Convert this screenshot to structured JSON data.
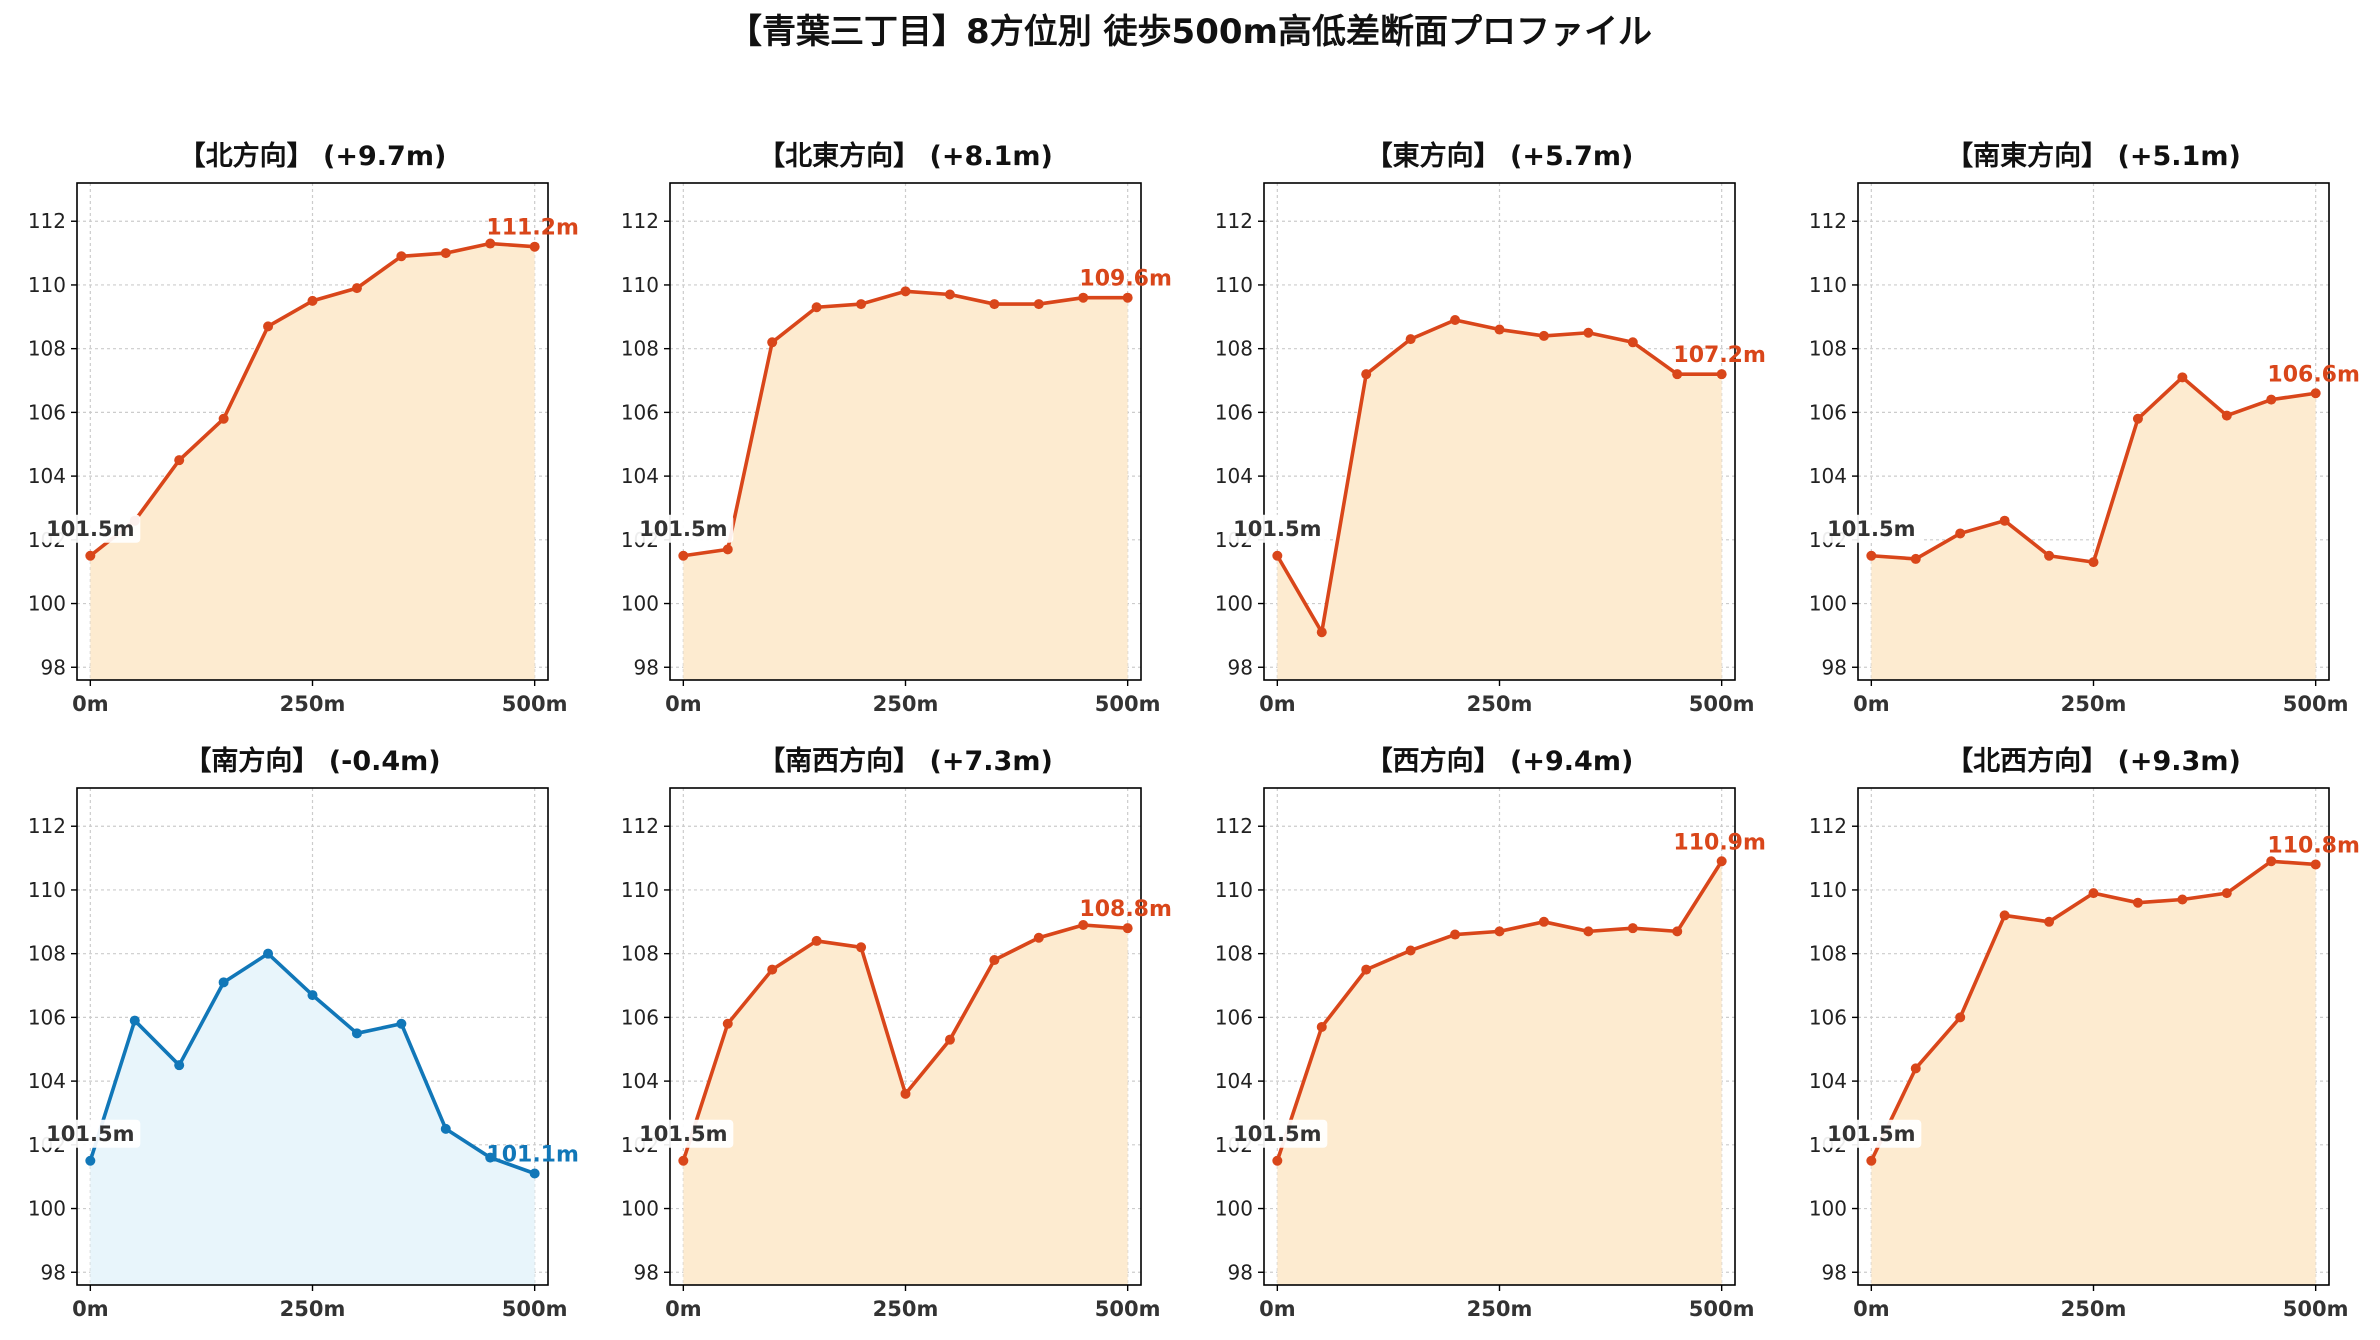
{
  "title": "【青葉三丁目】8方位別 徒歩500m高低差断面プロファイル",
  "colors": {
    "rise_line": "#d9461a",
    "rise_fill": "#fdebd0",
    "fall_line": "#1177b8",
    "fall_fill": "#e8f5fb",
    "start_label": "#333333",
    "grid": "#cccccc"
  },
  "chart_data": [
    {
      "type": "area",
      "title": "【北方向】 (+9.7m)",
      "trend": "rise",
      "x": [
        0,
        50,
        100,
        150,
        200,
        250,
        300,
        350,
        400,
        450,
        500
      ],
      "y": [
        101.5,
        102.6,
        104.5,
        105.8,
        108.7,
        109.5,
        109.9,
        110.9,
        111.0,
        111.3,
        111.2
      ],
      "start_label": "101.5m",
      "end_label": "111.2m",
      "xticks": [
        "0m",
        "250m",
        "500m"
      ],
      "yticks": [
        98,
        100,
        102,
        104,
        106,
        108,
        110,
        112
      ],
      "xlim": [
        -15,
        515
      ],
      "ylim": [
        97.6,
        113.2
      ],
      "grid": true
    },
    {
      "type": "area",
      "title": "【北東方向】 (+8.1m)",
      "trend": "rise",
      "x": [
        0,
        50,
        100,
        150,
        200,
        250,
        300,
        350,
        400,
        450,
        500
      ],
      "y": [
        101.5,
        101.7,
        108.2,
        109.3,
        109.4,
        109.8,
        109.7,
        109.4,
        109.4,
        109.6,
        109.6
      ],
      "start_label": "101.5m",
      "end_label": "109.6m",
      "xticks": [
        "0m",
        "250m",
        "500m"
      ],
      "yticks": [
        98,
        100,
        102,
        104,
        106,
        108,
        110,
        112
      ],
      "xlim": [
        -15,
        515
      ],
      "ylim": [
        97.6,
        113.2
      ],
      "grid": true
    },
    {
      "type": "area",
      "title": "【東方向】 (+5.7m)",
      "trend": "rise",
      "x": [
        0,
        50,
        100,
        150,
        200,
        250,
        300,
        350,
        400,
        450,
        500
      ],
      "y": [
        101.5,
        99.1,
        107.2,
        108.3,
        108.9,
        108.6,
        108.4,
        108.5,
        108.2,
        107.2,
        107.2
      ],
      "start_label": "101.5m",
      "end_label": "107.2m",
      "xticks": [
        "0m",
        "250m",
        "500m"
      ],
      "yticks": [
        98,
        100,
        102,
        104,
        106,
        108,
        110,
        112
      ],
      "xlim": [
        -15,
        515
      ],
      "ylim": [
        97.6,
        113.2
      ],
      "grid": true
    },
    {
      "type": "area",
      "title": "【南東方向】 (+5.1m)",
      "trend": "rise",
      "x": [
        0,
        50,
        100,
        150,
        200,
        250,
        300,
        350,
        400,
        450,
        500
      ],
      "y": [
        101.5,
        101.4,
        102.2,
        102.6,
        101.5,
        101.3,
        105.8,
        107.1,
        105.9,
        106.4,
        106.6
      ],
      "start_label": "101.5m",
      "end_label": "106.6m",
      "xticks": [
        "0m",
        "250m",
        "500m"
      ],
      "yticks": [
        98,
        100,
        102,
        104,
        106,
        108,
        110,
        112
      ],
      "xlim": [
        -15,
        515
      ],
      "ylim": [
        97.6,
        113.2
      ],
      "grid": true
    },
    {
      "type": "area",
      "title": "【南方向】 (-0.4m)",
      "trend": "fall",
      "x": [
        0,
        50,
        100,
        150,
        200,
        250,
        300,
        350,
        400,
        450,
        500
      ],
      "y": [
        101.5,
        105.9,
        104.5,
        107.1,
        108.0,
        106.7,
        105.5,
        105.8,
        102.5,
        101.6,
        101.1
      ],
      "start_label": "101.5m",
      "end_label": "101.1m",
      "xticks": [
        "0m",
        "250m",
        "500m"
      ],
      "yticks": [
        98,
        100,
        102,
        104,
        106,
        108,
        110,
        112
      ],
      "xlim": [
        -15,
        515
      ],
      "ylim": [
        97.6,
        113.2
      ],
      "grid": true
    },
    {
      "type": "area",
      "title": "【南西方向】 (+7.3m)",
      "trend": "rise",
      "x": [
        0,
        50,
        100,
        150,
        200,
        250,
        300,
        350,
        400,
        450,
        500
      ],
      "y": [
        101.5,
        105.8,
        107.5,
        108.4,
        108.2,
        103.6,
        105.3,
        107.8,
        108.5,
        108.9,
        108.8
      ],
      "start_label": "101.5m",
      "end_label": "108.8m",
      "xticks": [
        "0m",
        "250m",
        "500m"
      ],
      "yticks": [
        98,
        100,
        102,
        104,
        106,
        108,
        110,
        112
      ],
      "xlim": [
        -15,
        515
      ],
      "ylim": [
        97.6,
        113.2
      ],
      "grid": true
    },
    {
      "type": "area",
      "title": "【西方向】 (+9.4m)",
      "trend": "rise",
      "x": [
        0,
        50,
        100,
        150,
        200,
        250,
        300,
        350,
        400,
        450,
        500
      ],
      "y": [
        101.5,
        105.7,
        107.5,
        108.1,
        108.6,
        108.7,
        109.0,
        108.7,
        108.8,
        108.7,
        110.9
      ],
      "start_label": "101.5m",
      "end_label": "110.9m",
      "xticks": [
        "0m",
        "250m",
        "500m"
      ],
      "yticks": [
        98,
        100,
        102,
        104,
        106,
        108,
        110,
        112
      ],
      "xlim": [
        -15,
        515
      ],
      "ylim": [
        97.6,
        113.2
      ],
      "grid": true
    },
    {
      "type": "area",
      "title": "【北西方向】 (+9.3m)",
      "trend": "rise",
      "x": [
        0,
        50,
        100,
        150,
        200,
        250,
        300,
        350,
        400,
        450,
        500
      ],
      "y": [
        101.5,
        104.4,
        106.0,
        109.2,
        109.0,
        109.9,
        109.6,
        109.7,
        109.9,
        110.9,
        110.8
      ],
      "start_label": "101.5m",
      "end_label": "110.8m",
      "xticks": [
        "0m",
        "250m",
        "500m"
      ],
      "yticks": [
        98,
        100,
        102,
        104,
        106,
        108,
        110,
        112
      ],
      "xlim": [
        -15,
        515
      ],
      "ylim": [
        97.6,
        113.2
      ],
      "grid": true
    }
  ]
}
